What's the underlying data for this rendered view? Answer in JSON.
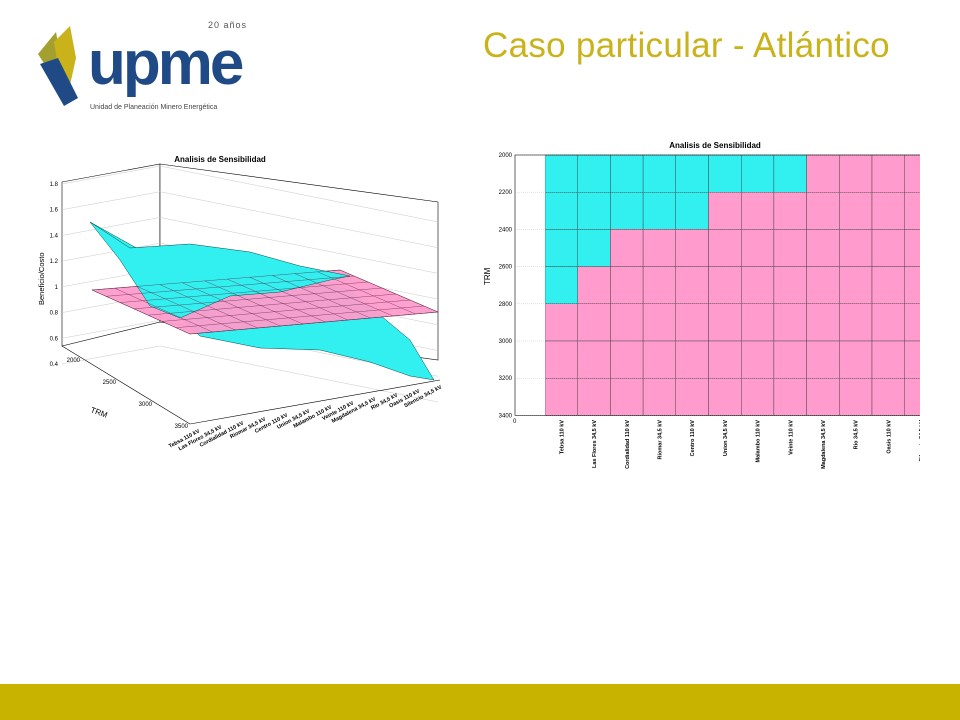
{
  "header": {
    "logo_text": "upme",
    "logo_anniversary": "20 años",
    "logo_subtitle": "Unidad de Planeación Minero Energética",
    "title": "Caso particular - Atlántico"
  },
  "colors": {
    "title": "#c9b21a",
    "footer_bar": "#c7b300",
    "cyan": "#33f0f0",
    "pink": "#ff9ccd",
    "logo_blue": "#1f4a86",
    "logo_olive": "#a3a030",
    "logo_gold": "#c9b21a"
  },
  "chart_data": [
    {
      "type": "surface3d",
      "title": "Analisis de Sensibilidad",
      "zlabel": "Beneficio/Costo",
      "ylabel": "TRM",
      "zticks": [
        "0.4",
        "0.6",
        "0.8",
        "1",
        "1.2",
        "1.4",
        "1.6",
        "1.8"
      ],
      "yticks": [
        "2000",
        "2500",
        "3000",
        "3500"
      ],
      "categories": [
        "Tebsa 110 kV",
        "Las Flores 34,5 kV",
        "Cordialidad 110 kV",
        "Riomar 34,5 kV",
        "Centro 110 kV",
        "Union 34,5 kV",
        "Malambo 110 kV",
        "Veinte 110 kV",
        "Magdalena 34,5 kV",
        "Rio 34,5 kV",
        "Oasis 110 kV",
        "Silencio 34,5 kV"
      ],
      "zlim": [
        0.4,
        1.8
      ],
      "reference_plane": 1.0,
      "series": [
        {
          "values": [
            [
              1.5,
              1.38,
              1.25,
              1.12,
              1.0,
              0.9,
              0.8,
              0.72,
              0.65,
              0.58,
              0.52,
              0.45
            ]
          ]
        },
        {
          "values": [
            [
              1.0,
              1.0,
              1.0,
              1.0,
              1.0,
              1.0,
              1.0,
              1.0,
              1.0,
              1.0,
              1.0,
              1.0
            ]
          ]
        }
      ]
    },
    {
      "type": "heatmap",
      "title": "Analisis de Sensibilidad",
      "ylabel": "TRM",
      "yticks": [
        "2000",
        "2200",
        "2400",
        "2600",
        "2800",
        "3000",
        "3200",
        "3400"
      ],
      "x_origin_label": "0",
      "categories": [
        "Tebsa 110 kV",
        "Las Flores 34,5 kV",
        "Cordialidad 110 kV",
        "Riomar 34,5 kV",
        "Centro 110 kV",
        "Union 34,5 kV",
        "Malambo 110 kV",
        "Veinte 110 kV",
        "Magdalena 34,5 kV",
        "Rio 34,5 kV",
        "Oasis 110 kV",
        "Silencio 34,5 kV"
      ],
      "rows": [
        "2000-2200",
        "2200-2400",
        "2400-2600",
        "2600-2800",
        "2800-3000",
        "3000-3200",
        "3200-3400"
      ],
      "grid": [
        [
          1,
          1,
          1,
          1,
          1,
          1,
          1,
          1,
          0,
          0,
          0,
          0
        ],
        [
          1,
          1,
          1,
          1,
          1,
          0,
          0,
          0,
          0,
          0,
          0,
          0
        ],
        [
          1,
          1,
          0,
          0,
          0,
          0,
          0,
          0,
          0,
          0,
          0,
          0
        ],
        [
          1,
          0,
          0,
          0,
          0,
          0,
          0,
          0,
          0,
          0,
          0,
          0
        ],
        [
          0,
          0,
          0,
          0,
          0,
          0,
          0,
          0,
          0,
          0,
          0,
          0
        ],
        [
          0,
          0,
          0,
          0,
          0,
          0,
          0,
          0,
          0,
          0,
          0,
          0
        ],
        [
          0,
          0,
          0,
          0,
          0,
          0,
          0,
          0,
          0,
          0,
          0,
          0
        ]
      ]
    }
  ]
}
